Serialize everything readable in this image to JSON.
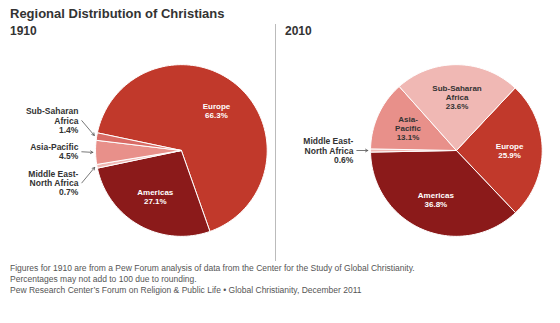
{
  "title": "Regional Distribution of Christians",
  "annotations": [
    "Figures for 1910 are from a Pew Forum analysis of data from the Center for the Study of Global Christianity.",
    "Percentages may not add to 100 due to rounding.",
    "Pew Research Center’s Forum on Religion & Public Life • Global Christianity, December 2011"
  ],
  "chart_data": [
    {
      "type": "pie",
      "title": "1910",
      "categories": [
        "Europe",
        "Americas",
        "Middle East-\nNorth Africa",
        "Asia-Pacific",
        "Sub-Saharan\nAfrica"
      ],
      "values": [
        66.3,
        27.1,
        0.7,
        4.5,
        1.4
      ],
      "value_labels": [
        "66.3%",
        "27.1%",
        "0.7%",
        "4.5%",
        "1.4%"
      ],
      "colors": [
        "#c1392b",
        "#8b1a1a",
        "#f0b8b4",
        "#e8908a",
        "#d96b65"
      ],
      "data_labels": true
    },
    {
      "type": "pie",
      "title": "2010",
      "categories": [
        "Europe",
        "Americas",
        "Middle East-\nNorth Africa",
        "Asia-\nPacific",
        "Sub-Saharan\nAfrica"
      ],
      "values": [
        25.9,
        36.8,
        0.6,
        13.1,
        23.6
      ],
      "value_labels": [
        "25.9%",
        "36.8%",
        "0.6%",
        "13.1%",
        "23.6%"
      ],
      "colors": [
        "#c1392b",
        "#8b1a1a",
        "#f0b8b4",
        "#e8908a",
        "#f0b8b4"
      ],
      "data_labels": true
    }
  ]
}
